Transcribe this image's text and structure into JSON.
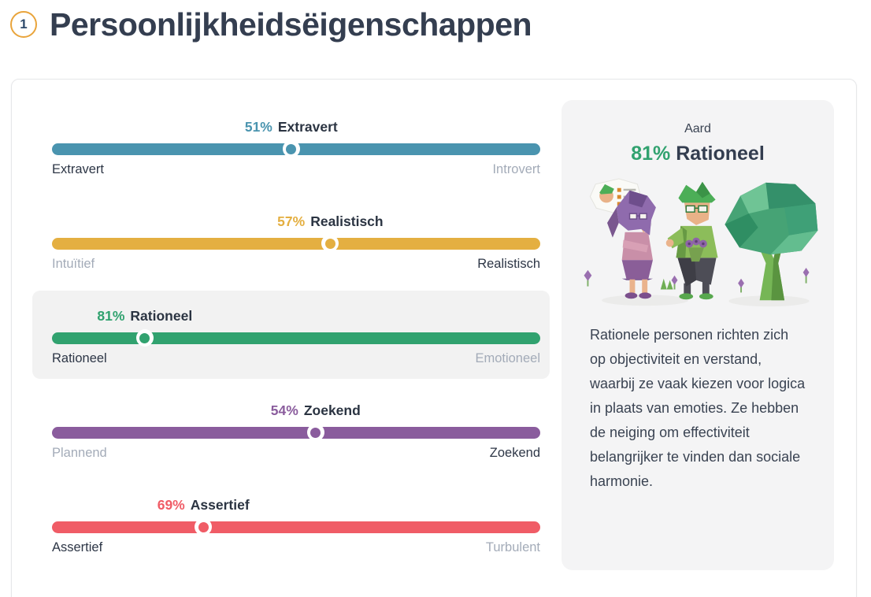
{
  "header": {
    "step_number": "1",
    "title": "Persoonlijkheidsëigenschappen",
    "badge_color": "#E9A43B"
  },
  "sliders": [
    {
      "percent": 51,
      "percent_label": "51%",
      "trait": "Extravert",
      "left_label": "Extravert",
      "right_label": "Introvert",
      "dominant_side": "left",
      "color": "#4A94AF",
      "highlighted": false
    },
    {
      "percent": 57,
      "percent_label": "57%",
      "trait": "Realistisch",
      "left_label": "Intuïtief",
      "right_label": "Realistisch",
      "dominant_side": "right",
      "color": "#E4AF41",
      "highlighted": false
    },
    {
      "percent": 81,
      "percent_label": "81%",
      "trait": "Rationeel",
      "left_label": "Rationeel",
      "right_label": "Emotioneel",
      "dominant_side": "left",
      "color": "#31A26F",
      "highlighted": true
    },
    {
      "percent": 54,
      "percent_label": "54%",
      "trait": "Zoekend",
      "left_label": "Plannend",
      "right_label": "Zoekend",
      "dominant_side": "right",
      "color": "#8A5C9D",
      "highlighted": false
    },
    {
      "percent": 69,
      "percent_label": "69%",
      "trait": "Assertief",
      "left_label": "Assertief",
      "right_label": "Turbulent",
      "dominant_side": "left",
      "color": "#F05C66",
      "highlighted": false
    }
  ],
  "detail_panel": {
    "category_label": "Aard",
    "percent_label": "81%",
    "trait": "Rationeel",
    "percent_color": "#31A26F",
    "illustration_alt": "two-low-poly-people-talking-next-to-tree-with-checklist-thought-bubble",
    "description": "Rationele personen richten zich op objectiviteit en verstand, waarbij ze vaak kiezen voor logica in plaats van emoties. Ze hebben de neiging om effectiviteit belangrijker te vinden dan sociale harmonie."
  }
}
